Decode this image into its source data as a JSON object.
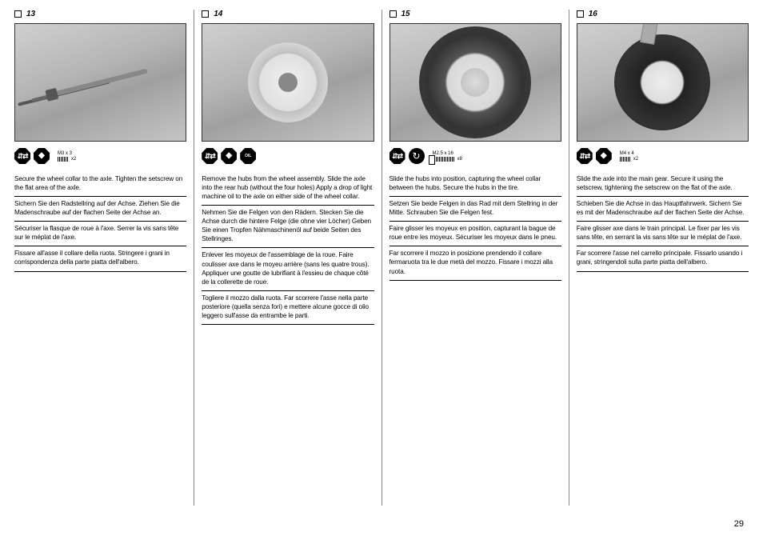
{
  "page_number": "29",
  "steps": [
    {
      "number": "13",
      "icons": [
        "arrows",
        "tag"
      ],
      "hardware": {
        "label": "M3 x 3",
        "qty": "x2",
        "style": "short"
      },
      "langs": {
        "en": "Secure the wheel collar to the axle. Tighten the setscrew on the flat area of the axle.",
        "de": "Sichern Sie den Radstellring auf der Achse. Ziehen Sie die Madenschraube auf der flachen Seite der Achse an.",
        "fr": "Sécuriser la flasque de roue à l'axe. Serrer la vis sans tête sur le méplat de l'axe.",
        "it": "Fissare all'asse il collare della ruota. Stringere i grani in corrispondenza della parte piatta dell'albero."
      }
    },
    {
      "number": "14",
      "icons": [
        "arrows",
        "tag",
        "oil"
      ],
      "hardware": null,
      "langs": {
        "en": "Remove the hubs from the wheel assembly. Slide the axle into the rear hub (without the four holes) Apply a drop of light machine oil to the axle on either side of the wheel collar.",
        "de": "Nehmen Sie die Felgen von den Rädern. Stecken Sie die Achse durch die hintere Felge (die ohne vier Löcher) Geben Sie einen Tropfen Nähmaschinenöl auf beide Seiten des Stellringes.",
        "fr": "Enlever les moyeux de l'assemblage de la roue. Faire coulisser axe dans le moyeu arrière (sans les quatre trous). Appliquer une goutte de lubrifiant à l'essieu de chaque côté de la collerette de roue.",
        "it": "Togliere il mozzo dalla ruota. Far scorrere l'asse nella parte posteriore (quella senza fori) e mettere alcune gocce di olio leggero sull'asse da entrambe le parti."
      }
    },
    {
      "number": "15",
      "icons": [
        "arrows",
        "circ"
      ],
      "hardware": {
        "label": "M2.5 x 16",
        "qty": "x8",
        "style": "head"
      },
      "langs": {
        "en": "Slide the hubs into position, capturing the wheel collar between the hubs. Secure the hubs in the tire.",
        "de": "Setzen Sie beide Felgen in das Rad mit dem Stellring in der Mitte. Schrauben Sie die Felgen fest.",
        "fr": "Faire glisser les moyeux en position, capturant la bague de roue entre les moyeux. Sécuriser les moyeux dans le pneu.",
        "it": "Far scorrere il mozzo in posizione prendendo il collare fermaruota tra le due metà del mozzo. Fissare i mozzi alla ruota."
      }
    },
    {
      "number": "16",
      "icons": [
        "arrows",
        "tag"
      ],
      "hardware": {
        "label": "M4 x 4",
        "qty": "x2",
        "style": "short"
      },
      "langs": {
        "en": "Slide the axle into the main gear. Secure it using the setscrew, tightening the setscrew on the flat of the axle.",
        "de": "Schieben Sie die Achse in das Hauptfahrwerk. Sichern Sie es mit der Madenschraube auf der flachen Seite der Achse.",
        "fr": "Faire glisser axe dans le train principal. Le fixer par les vis sans tête, en serrant la vis sans tête sur le méplat de l'axe.",
        "it": "Far scorrere l'asse nel carrello principale. Fissarlo usando i grani, stringendoli sulla parte piatta dell'albero."
      }
    }
  ]
}
